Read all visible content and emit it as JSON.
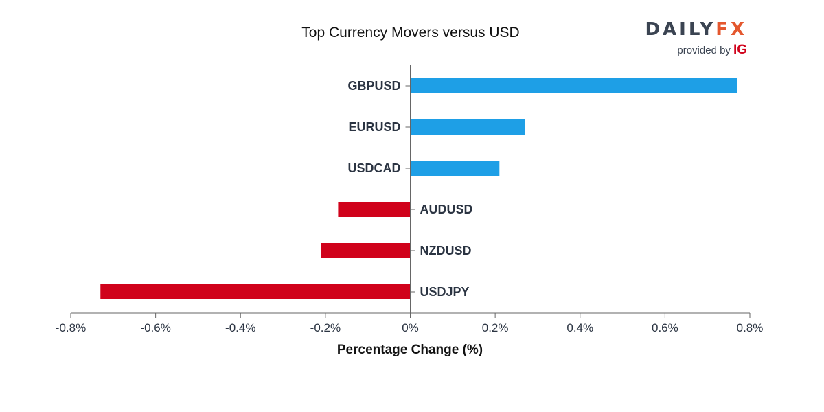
{
  "chart_data": {
    "type": "bar",
    "orientation": "horizontal",
    "title": "Top Currency Movers versus USD",
    "xlabel": "Percentage Change (%)",
    "ylabel": "",
    "xlim": [
      -0.8,
      0.8
    ],
    "xticks": [
      -0.8,
      -0.6,
      -0.4,
      -0.2,
      0,
      0.2,
      0.4,
      0.6,
      0.8
    ],
    "xtick_labels": [
      "-0.8%",
      "-0.6%",
      "-0.4%",
      "-0.2%",
      "0%",
      "0.2%",
      "0.4%",
      "0.6%",
      "0.8%"
    ],
    "categories": [
      "GBPUSD",
      "EURUSD",
      "USDCAD",
      "AUDUSD",
      "NZDUSD",
      "USDJPY"
    ],
    "values": [
      0.77,
      0.27,
      0.21,
      -0.17,
      -0.21,
      -0.73
    ],
    "positive_color": "#1e9fe6",
    "negative_color": "#d0021b",
    "grid": false
  },
  "branding": {
    "logo_daily": "DAILY",
    "logo_fx": "FX",
    "provided_by": "provided by",
    "ig": "IG"
  }
}
